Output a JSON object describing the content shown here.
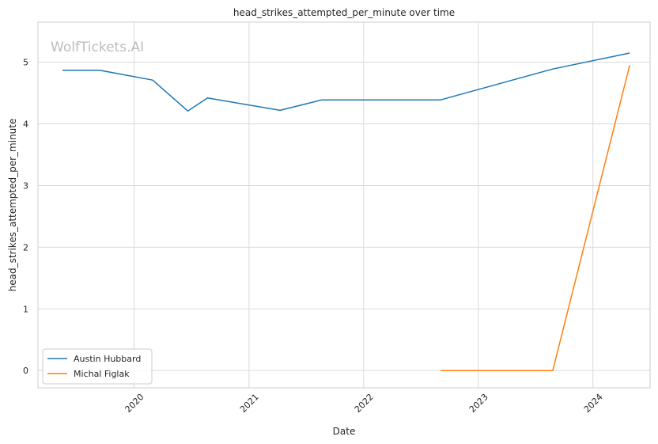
{
  "chart_data": {
    "type": "line",
    "title": "head_strikes_attempted_per_minute over time",
    "xlabel": "Date",
    "ylabel": "head_strikes_attempted_per_minute",
    "x_type": "date",
    "xlim": [
      "2019-03-01",
      "2024-07-01"
    ],
    "ylim": [
      -0.28,
      5.65
    ],
    "x_ticks": [
      "2020",
      "2021",
      "2022",
      "2023",
      "2024"
    ],
    "x_tick_dates": [
      "2020-01-01",
      "2021-01-01",
      "2022-01-01",
      "2023-01-01",
      "2024-01-01"
    ],
    "y_ticks": [
      0,
      1,
      2,
      3,
      4,
      5
    ],
    "grid": true,
    "legend_position": "lower-left",
    "watermark": "WolfTickets.AI",
    "series": [
      {
        "name": "Austin Hubbard",
        "color": "#1f77b4",
        "points": [
          {
            "x": "2019-05-18",
            "y": 4.87
          },
          {
            "x": "2019-09-14",
            "y": 4.87
          },
          {
            "x": "2020-02-29",
            "y": 4.71
          },
          {
            "x": "2020-06-20",
            "y": 4.21
          },
          {
            "x": "2020-08-22",
            "y": 4.42
          },
          {
            "x": "2021-04-10",
            "y": 4.22
          },
          {
            "x": "2021-08-21",
            "y": 4.39
          },
          {
            "x": "2022-09-03",
            "y": 4.39
          },
          {
            "x": "2023-08-26",
            "y": 4.89
          },
          {
            "x": "2024-04-27",
            "y": 5.15
          }
        ]
      },
      {
        "name": "Michal Figlak",
        "color": "#ff7f0e",
        "points": [
          {
            "x": "2022-09-03",
            "y": 0.0
          },
          {
            "x": "2023-08-26",
            "y": 0.0
          },
          {
            "x": "2024-04-27",
            "y": 4.95
          }
        ]
      }
    ]
  }
}
